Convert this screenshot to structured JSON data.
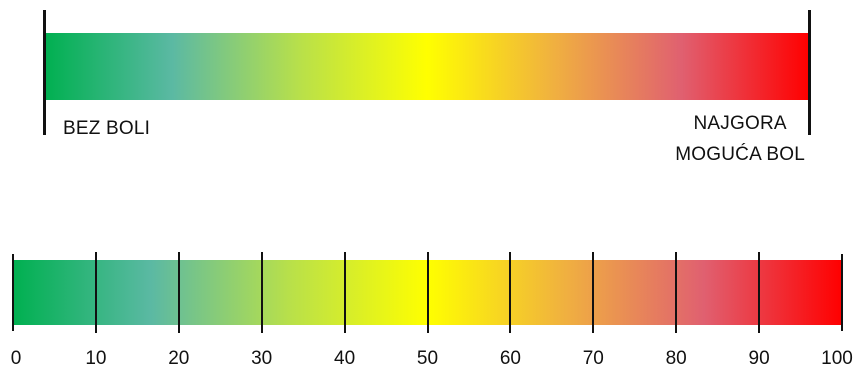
{
  "vas": {
    "label_left": "BEZ BOLI",
    "label_right_line1": "NAJGORA",
    "label_right_line2": "MOGUĆA BOL"
  },
  "nrs": {
    "min": 0,
    "max": 100,
    "step": 10,
    "labels": [
      "0",
      "10",
      "20",
      "30",
      "40",
      "50",
      "60",
      "70",
      "80",
      "90",
      "100"
    ]
  },
  "colors": {
    "gradient": [
      "#00b050",
      "#5bb9a3",
      "#b8e04a",
      "#ffff00",
      "#f0b040",
      "#e06070",
      "#ff0000"
    ],
    "line": "#111111",
    "text": "#111111"
  }
}
